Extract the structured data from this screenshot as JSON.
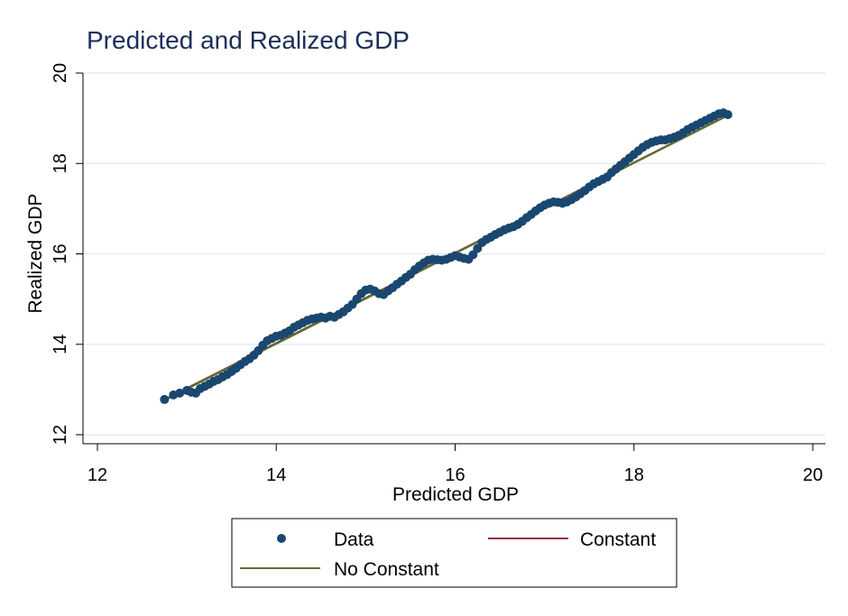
{
  "chart_data": {
    "type": "scatter",
    "title": "Predicted and Realized GDP",
    "xlabel": "Predicted GDP",
    "ylabel": "Realized GDP",
    "xlim": [
      12,
      20
    ],
    "ylim": [
      12,
      20
    ],
    "xticks": [
      "12",
      "14",
      "16",
      "18",
      "20"
    ],
    "yticks": [
      "12",
      "14",
      "16",
      "18",
      "20"
    ],
    "grid": true,
    "legend_position": "bottom",
    "series": [
      {
        "name": "Data",
        "kind": "scatter",
        "color": "#1a476f",
        "points": [
          [
            12.75,
            12.78
          ],
          [
            12.85,
            12.88
          ],
          [
            12.92,
            12.92
          ],
          [
            13.0,
            12.98
          ],
          [
            13.05,
            12.94
          ],
          [
            13.1,
            12.92
          ],
          [
            13.15,
            13.02
          ],
          [
            13.2,
            13.07
          ],
          [
            13.25,
            13.12
          ],
          [
            13.3,
            13.18
          ],
          [
            13.35,
            13.22
          ],
          [
            13.4,
            13.28
          ],
          [
            13.45,
            13.33
          ],
          [
            13.5,
            13.4
          ],
          [
            13.55,
            13.47
          ],
          [
            13.6,
            13.55
          ],
          [
            13.65,
            13.62
          ],
          [
            13.7,
            13.68
          ],
          [
            13.75,
            13.76
          ],
          [
            13.8,
            13.86
          ],
          [
            13.85,
            13.98
          ],
          [
            13.9,
            14.08
          ],
          [
            13.95,
            14.13
          ],
          [
            14.0,
            14.18
          ],
          [
            14.05,
            14.2
          ],
          [
            14.1,
            14.25
          ],
          [
            14.15,
            14.3
          ],
          [
            14.2,
            14.38
          ],
          [
            14.25,
            14.43
          ],
          [
            14.3,
            14.48
          ],
          [
            14.35,
            14.53
          ],
          [
            14.4,
            14.56
          ],
          [
            14.45,
            14.58
          ],
          [
            14.5,
            14.6
          ],
          [
            14.55,
            14.58
          ],
          [
            14.6,
            14.62
          ],
          [
            14.65,
            14.6
          ],
          [
            14.7,
            14.66
          ],
          [
            14.75,
            14.72
          ],
          [
            14.8,
            14.8
          ],
          [
            14.85,
            14.88
          ],
          [
            14.9,
            15.0
          ],
          [
            14.95,
            15.12
          ],
          [
            15.0,
            15.2
          ],
          [
            15.05,
            15.22
          ],
          [
            15.1,
            15.18
          ],
          [
            15.15,
            15.12
          ],
          [
            15.2,
            15.1
          ],
          [
            15.25,
            15.18
          ],
          [
            15.3,
            15.25
          ],
          [
            15.35,
            15.33
          ],
          [
            15.4,
            15.4
          ],
          [
            15.45,
            15.48
          ],
          [
            15.5,
            15.55
          ],
          [
            15.55,
            15.65
          ],
          [
            15.6,
            15.73
          ],
          [
            15.65,
            15.8
          ],
          [
            15.7,
            15.86
          ],
          [
            15.75,
            15.88
          ],
          [
            15.8,
            15.87
          ],
          [
            15.85,
            15.86
          ],
          [
            15.9,
            15.88
          ],
          [
            15.95,
            15.92
          ],
          [
            16.0,
            15.96
          ],
          [
            16.05,
            15.93
          ],
          [
            16.1,
            15.9
          ],
          [
            16.15,
            15.88
          ],
          [
            16.2,
            15.98
          ],
          [
            16.25,
            16.12
          ],
          [
            16.3,
            16.25
          ],
          [
            16.35,
            16.32
          ],
          [
            16.4,
            16.37
          ],
          [
            16.45,
            16.43
          ],
          [
            16.5,
            16.48
          ],
          [
            16.55,
            16.53
          ],
          [
            16.6,
            16.57
          ],
          [
            16.65,
            16.6
          ],
          [
            16.7,
            16.65
          ],
          [
            16.75,
            16.72
          ],
          [
            16.8,
            16.8
          ],
          [
            16.85,
            16.87
          ],
          [
            16.9,
            16.95
          ],
          [
            16.95,
            17.02
          ],
          [
            17.0,
            17.08
          ],
          [
            17.05,
            17.12
          ],
          [
            17.1,
            17.15
          ],
          [
            17.15,
            17.14
          ],
          [
            17.2,
            17.12
          ],
          [
            17.25,
            17.15
          ],
          [
            17.3,
            17.2
          ],
          [
            17.35,
            17.26
          ],
          [
            17.4,
            17.33
          ],
          [
            17.45,
            17.4
          ],
          [
            17.5,
            17.48
          ],
          [
            17.55,
            17.55
          ],
          [
            17.6,
            17.6
          ],
          [
            17.65,
            17.65
          ],
          [
            17.7,
            17.7
          ],
          [
            17.75,
            17.8
          ],
          [
            17.8,
            17.88
          ],
          [
            17.85,
            17.96
          ],
          [
            17.9,
            18.04
          ],
          [
            17.95,
            18.12
          ],
          [
            18.0,
            18.2
          ],
          [
            18.05,
            18.28
          ],
          [
            18.1,
            18.36
          ],
          [
            18.15,
            18.42
          ],
          [
            18.2,
            18.47
          ],
          [
            18.25,
            18.5
          ],
          [
            18.3,
            18.52
          ],
          [
            18.35,
            18.52
          ],
          [
            18.4,
            18.55
          ],
          [
            18.45,
            18.58
          ],
          [
            18.5,
            18.62
          ],
          [
            18.55,
            18.68
          ],
          [
            18.6,
            18.75
          ],
          [
            18.65,
            18.8
          ],
          [
            18.7,
            18.85
          ],
          [
            18.75,
            18.9
          ],
          [
            18.8,
            18.95
          ],
          [
            18.85,
            19.0
          ],
          [
            18.9,
            19.05
          ],
          [
            18.95,
            19.1
          ],
          [
            19.0,
            19.12
          ],
          [
            19.05,
            19.08
          ]
        ]
      },
      {
        "name": "Constant",
        "kind": "line",
        "color": "#90353b",
        "points": [
          [
            12.75,
            12.78
          ],
          [
            19.05,
            19.07
          ]
        ]
      },
      {
        "name": "No Constant",
        "kind": "line",
        "color": "#55752f",
        "points": [
          [
            12.75,
            12.76
          ],
          [
            19.05,
            19.06
          ]
        ]
      }
    ]
  }
}
